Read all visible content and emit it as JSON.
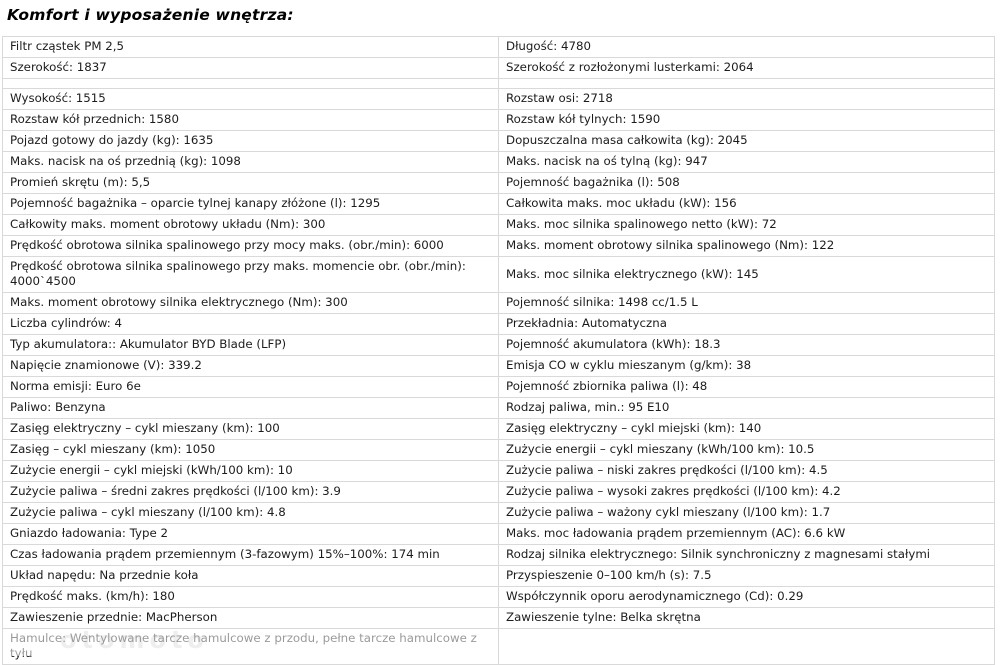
{
  "header": {
    "title": "Komfort i wyposażenie wnętrza:"
  },
  "colors": {
    "border": "#d9d9d9",
    "text": "#1c1c1c",
    "background": "#ffffff"
  },
  "watermark": {
    "text": "otomoto"
  },
  "spec_table": {
    "rows": [
      {
        "left": "Filtr cząstek PM 2,5",
        "right": "Długość: 4780"
      },
      {
        "left": "Szerokość: 1837",
        "right": "Szerokość z rozłożonymi lusterkami: 2064"
      },
      {
        "left": "",
        "right": ""
      },
      {
        "left": "Wysokość: 1515",
        "right": "Rozstaw osi: 2718"
      },
      {
        "left": "Rozstaw kół przednich: 1580",
        "right": "Rozstaw kół tylnych: 1590"
      },
      {
        "left": "Pojazd gotowy do jazdy (kg): 1635",
        "right": "Dopuszczalna masa całkowita (kg): 2045"
      },
      {
        "left": "Maks. nacisk na oś przednią (kg): 1098",
        "right": "Maks. nacisk na oś tylną (kg): 947"
      },
      {
        "left": "Promień skrętu (m): 5,5",
        "right": "Pojemność bagażnika (l): 508"
      },
      {
        "left": "Pojemność bagażnika – oparcie tylnej kanapy złóżone (l): 1295",
        "right": "Całkowita maks. moc układu (kW): 156"
      },
      {
        "left": "Całkowity maks. moment obrotowy układu (Nm): 300",
        "right": "Maks. moc silnika spalinowego netto (kW): 72"
      },
      {
        "left": "Prędkość obrotowa silnika spalinowego przy mocy maks. (obr./min): 6000",
        "right": "Maks. moment obrotowy silnika spalinowego (Nm): 122"
      },
      {
        "left": "Prędkość obrotowa silnika spalinowego przy maks. momencie obr. (obr./min): 4000`4500",
        "right": "Maks. moc silnika elektrycznego (kW): 145"
      },
      {
        "left": "Maks. moment obrotowy silnika elektrycznego (Nm): 300",
        "right": "Pojemność silnika: 1498 cc/1.5 L"
      },
      {
        "left": "Liczba cylindrów: 4",
        "right": "Przekładnia: Automatyczna"
      },
      {
        "left": "Typ akumulatora:: Akumulator BYD Blade (LFP)",
        "right": "Pojemność akumulatora (kWh): 18.3"
      },
      {
        "left": "Napięcie znamionowe (V): 339.2",
        "right": "Emisja CO w cyklu mieszanym (g/km): 38"
      },
      {
        "left": "Norma emisji: Euro 6e",
        "right": "Pojemność zbiornika paliwa (l): 48"
      },
      {
        "left": "Paliwo: Benzyna",
        "right": "Rodzaj paliwa, min.: 95 E10"
      },
      {
        "left": "Zasięg elektryczny – cykl mieszany (km): 100",
        "right": "Zasięg elektryczny – cykl miejski (km): 140"
      },
      {
        "left": "Zasięg – cykl mieszany (km): 1050",
        "right": "Zużycie energii – cykl mieszany (kWh/100 km): 10.5"
      },
      {
        "left": "Zużycie energii – cykl miejski (kWh/100 km): 10",
        "right": "Zużycie paliwa – niski zakres prędkości (l/100 km): 4.5"
      },
      {
        "left": "Zużycie paliwa – średni zakres prędkości (l/100 km): 3.9",
        "right": "Zużycie paliwa – wysoki zakres prędkości (l/100 km): 4.2"
      },
      {
        "left": "Zużycie paliwa – cykl mieszany (l/100 km): 4.8",
        "right": "Zużycie paliwa – ważony cykl mieszany (l/100 km): 1.7"
      },
      {
        "left": "Gniazdo ładowania: Type 2",
        "right": "Maks. moc ładowania prądem przemiennym (AC): 6.6 kW"
      },
      {
        "left": "Czas ładowania prądem przemiennym (3-fazowym) 15%–100%: 174 min",
        "right": "Rodzaj silnika elektrycznego: Silnik synchroniczny z magnesami stałymi"
      },
      {
        "left": "Układ napędu: Na przednie koła",
        "right": "Przyspieszenie 0–100 km/h (s): 7.5"
      },
      {
        "left": "Prędkość maks. (km/h): 180",
        "right": "Współczynnik oporu aerodynamicznego (Cd): 0.29"
      },
      {
        "left": "Zawieszenie przednie: MacPherson",
        "right": "Zawieszenie tylne: Belka skrętna"
      },
      {
        "left": "Hamulce: Wentylowane tarcze hamulcowe z przodu, pełne tarcze hamulcowe z tyłu",
        "right": ""
      }
    ]
  }
}
